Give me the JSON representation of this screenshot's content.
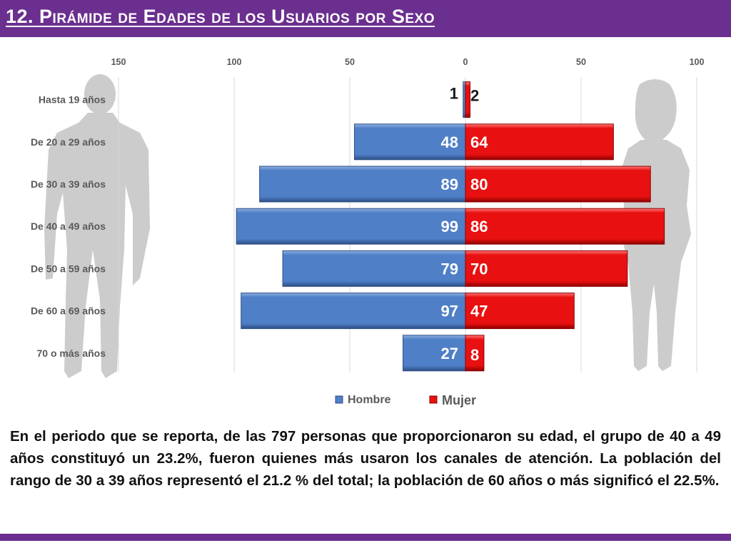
{
  "slide": {
    "title": "12. Pirámide de Edades de los Usuarios por Sexo",
    "paragraph": "En el periodo que se reporta, de las 797 personas que proporcionaron su edad, el grupo de 40 a 49 años constituyó un 23.2%, fueron quienes más usaron los canales de atención. La población del rango de 30 a 39 años representó el 21.2 % del total; la población de 60 años o más significó el 22.5%."
  },
  "colors": {
    "header": "#6b2f8f",
    "hombre": "#4f7fc6",
    "mujer": "#e81010",
    "silhouette": "#cccccc",
    "axis_text": "#595959",
    "label_dark": "#1a1a1a",
    "label_light": "#ffffff"
  },
  "chart_data": {
    "type": "bar",
    "orientation": "horizontal-pyramid",
    "categories": [
      "Hasta 19 años",
      "De 20 a 29 años",
      "De 30 a 39 años",
      "De 40 a 49 años",
      "De 50 a 59 años",
      "De 60 a 69 años",
      "70 o más años"
    ],
    "series": [
      {
        "name": "Hombre",
        "side": "left",
        "values": [
          1,
          48,
          89,
          99,
          79,
          97,
          27
        ]
      },
      {
        "name": "Mujer",
        "side": "right",
        "values": [
          2,
          64,
          80,
          86,
          70,
          47,
          8
        ]
      }
    ],
    "x_ticks": [
      {
        "value": -150,
        "label": "150"
      },
      {
        "value": -100,
        "label": "100"
      },
      {
        "value": -50,
        "label": "50"
      },
      {
        "value": 0,
        "label": "0"
      },
      {
        "value": 50,
        "label": "50"
      },
      {
        "value": 100,
        "label": "100"
      }
    ],
    "xlim": [
      -150,
      100
    ],
    "grid": "vertical",
    "legend_position": "bottom",
    "title": "",
    "xlabel": "",
    "ylabel": ""
  }
}
